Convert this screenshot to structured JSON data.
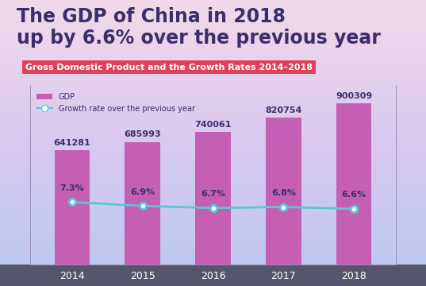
{
  "chart_data": {
    "type": "bar",
    "title": "The GDP of China in 2018\nup by 6.6% over the previous year",
    "subtitle": "Gross Domestic Product and the Growth Rates 2014–2018",
    "categories": [
      "2014",
      "2015",
      "2016",
      "2017",
      "2018"
    ],
    "series": [
      {
        "name": "GDP",
        "type": "bar",
        "color": "#c45fb4",
        "values": [
          641281,
          685993,
          740061,
          820754,
          900309
        ],
        "data_labels": true
      },
      {
        "name": "Growth rate over the previous year",
        "type": "line",
        "axis": "y2",
        "color": "#5cc6d6",
        "marker": "o",
        "line_style": "solid",
        "values": [
          7.3,
          6.9,
          6.7,
          6.8,
          6.6
        ],
        "value_labels": [
          "7.3%",
          "6.9%",
          "6.7%",
          "6.8%",
          "6.6%"
        ],
        "data_labels": true
      }
    ],
    "ylim": [
      0,
      1000000
    ],
    "y2lim": [
      1,
      19
    ],
    "legend": "upper left",
    "tick_labels": "x",
    "grid": false
  }
}
